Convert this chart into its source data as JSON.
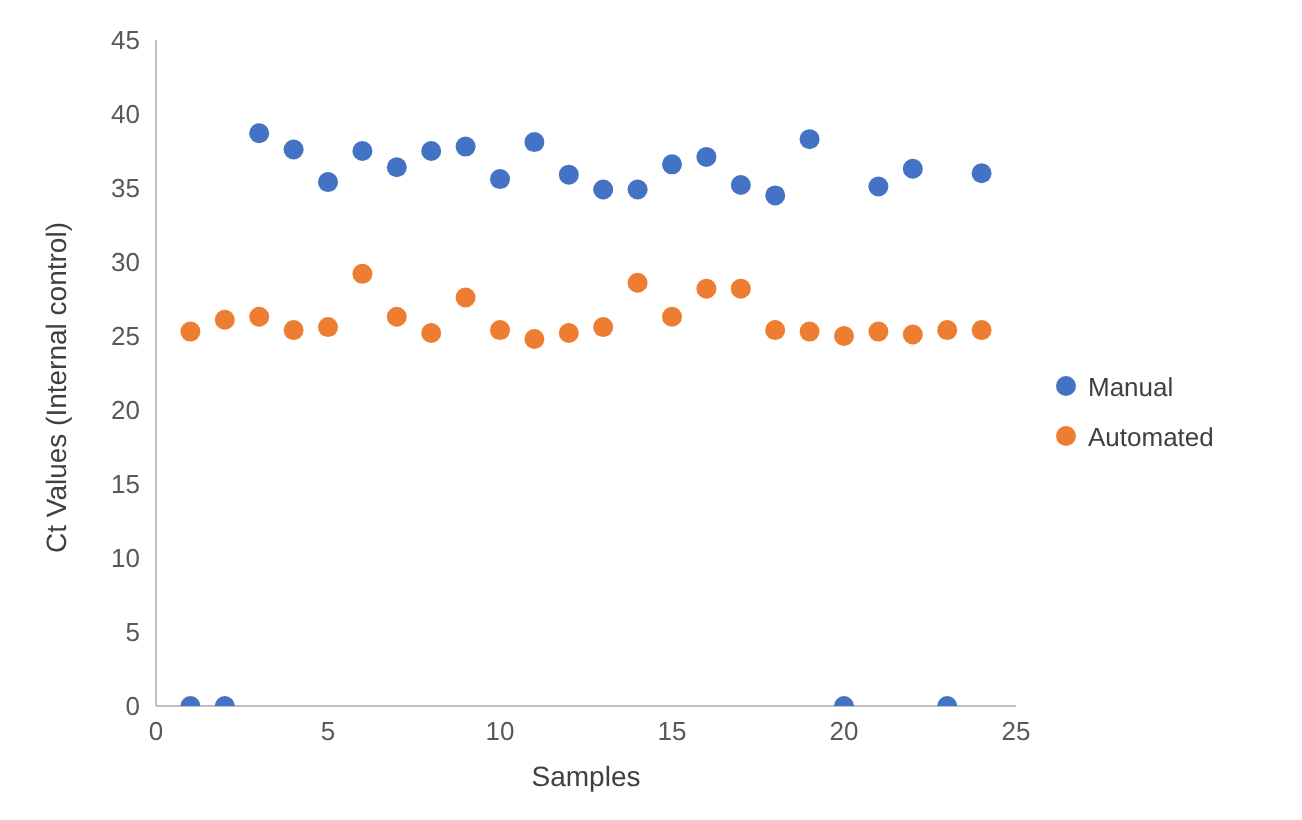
{
  "chart_data": {
    "type": "scatter",
    "xlabel": "Samples",
    "ylabel": "Ct Values (Internal control)",
    "x": [
      1,
      2,
      3,
      4,
      5,
      6,
      7,
      8,
      9,
      10,
      11,
      12,
      13,
      14,
      15,
      16,
      17,
      18,
      19,
      20,
      21,
      22,
      23,
      24
    ],
    "series": [
      {
        "name": "Manual",
        "color": "#4472c4",
        "values": [
          0,
          0,
          38.7,
          37.6,
          35.4,
          37.5,
          36.4,
          37.5,
          37.8,
          35.6,
          38.1,
          35.9,
          34.9,
          34.9,
          36.6,
          37.1,
          35.2,
          34.5,
          38.3,
          0,
          35.1,
          36.3,
          0,
          36.0
        ]
      },
      {
        "name": "Automated",
        "color": "#ed7d31",
        "values": [
          25.3,
          26.1,
          26.3,
          25.4,
          25.6,
          29.2,
          26.3,
          25.2,
          27.6,
          25.4,
          24.8,
          25.2,
          25.6,
          28.6,
          26.3,
          28.2,
          28.2,
          25.4,
          25.3,
          25.0,
          25.3,
          25.1,
          25.4,
          25.4
        ]
      }
    ],
    "xlim": [
      0,
      25
    ],
    "xticks": [
      0,
      5,
      10,
      15,
      20,
      25
    ],
    "ylim": [
      0,
      45
    ],
    "yticks": [
      0,
      5,
      10,
      15,
      20,
      25,
      30,
      35,
      40,
      45
    ],
    "grid": false,
    "legend": "right",
    "marker": "circle"
  }
}
